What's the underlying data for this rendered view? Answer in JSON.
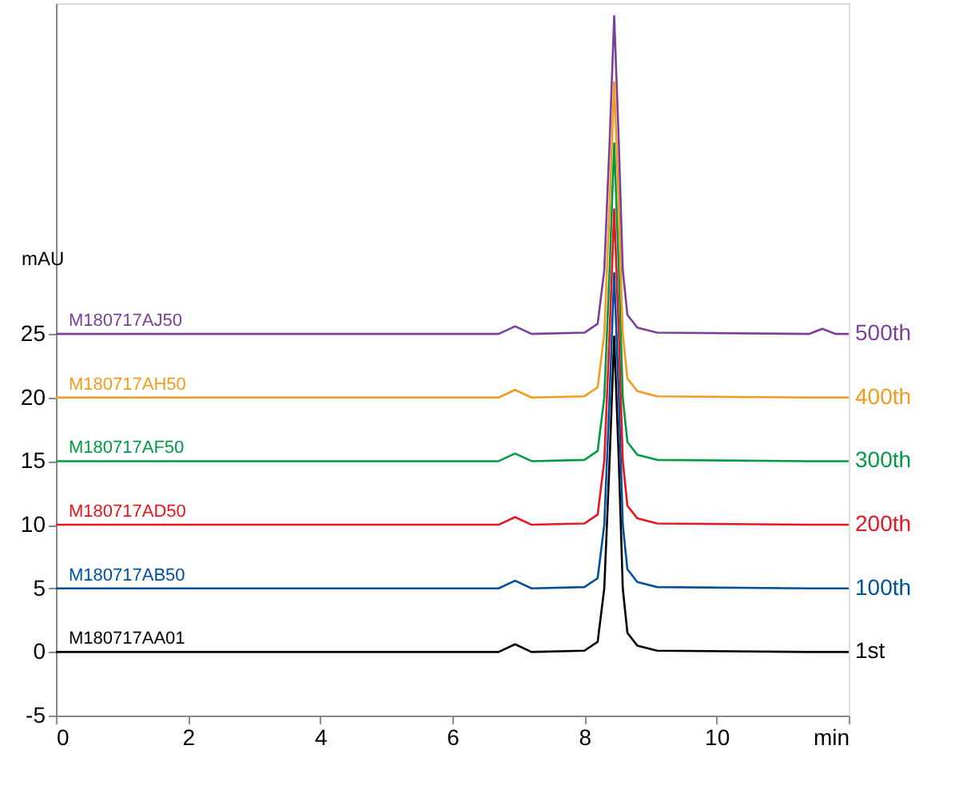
{
  "chart_data": {
    "type": "line",
    "ylabel": "mAU",
    "x": [
      0,
      3,
      6.7,
      6.95,
      7.2,
      8.0,
      8.2,
      8.3,
      8.38,
      8.45,
      8.52,
      8.58,
      8.65,
      8.8,
      9.1,
      11.4,
      11.6,
      11.8,
      12
    ],
    "series": [
      {
        "name": "M180717AA01",
        "color": "#000000",
        "values": [
          0,
          0,
          0,
          0.6,
          0,
          0.1,
          0.8,
          5,
          15,
          24.8,
          15,
          5,
          1.5,
          0.5,
          0.1,
          0,
          0,
          0,
          0
        ]
      },
      {
        "name": "M180717AB50",
        "color": "#0050a0",
        "values": [
          5,
          5,
          5,
          5.6,
          5,
          5.1,
          5.8,
          10,
          20,
          29.8,
          20,
          10,
          6.5,
          5.5,
          5.1,
          5,
          5,
          5,
          5
        ]
      },
      {
        "name": "M180717AD50",
        "color": "#e8141e",
        "values": [
          10,
          10,
          10,
          10.6,
          10,
          10.1,
          10.8,
          15,
          25,
          34.8,
          25,
          15,
          11.5,
          10.5,
          10.1,
          10,
          10,
          10,
          10
        ]
      },
      {
        "name": "M180717AF50",
        "color": "#009a44",
        "values": [
          15,
          15,
          15,
          15.6,
          15,
          15.1,
          15.8,
          20,
          30,
          40,
          30,
          20,
          16.5,
          15.5,
          15.1,
          15,
          15,
          15,
          15
        ]
      },
      {
        "name": "M180717AH50",
        "color": "#f39a1e",
        "values": [
          20,
          20,
          20,
          20.6,
          20,
          20.1,
          20.8,
          25,
          35,
          44.8,
          35,
          25,
          21.5,
          20.5,
          20.1,
          20,
          20,
          20,
          20
        ]
      },
      {
        "name": "M180717AJ50",
        "color": "#7b3f98",
        "values": [
          25,
          25,
          25,
          25.6,
          25,
          25.1,
          25.8,
          30,
          40,
          50,
          40,
          30,
          26.5,
          25.5,
          25.1,
          25,
          25.4,
          25,
          25
        ]
      }
    ],
    "annotations": [
      "1st",
      "100th",
      "200th",
      "300th",
      "400th",
      "500th"
    ],
    "xlim": [
      0,
      12
    ],
    "xticks": [
      0,
      2,
      4,
      6,
      8,
      10,
      {
        "value": 12,
        "label": "min"
      }
    ],
    "ylim": [
      -5,
      51
    ],
    "yticks": [
      -5,
      0,
      5,
      10,
      15,
      20,
      25
    ],
    "grid": false,
    "marker": "none",
    "line_style": "solid"
  }
}
